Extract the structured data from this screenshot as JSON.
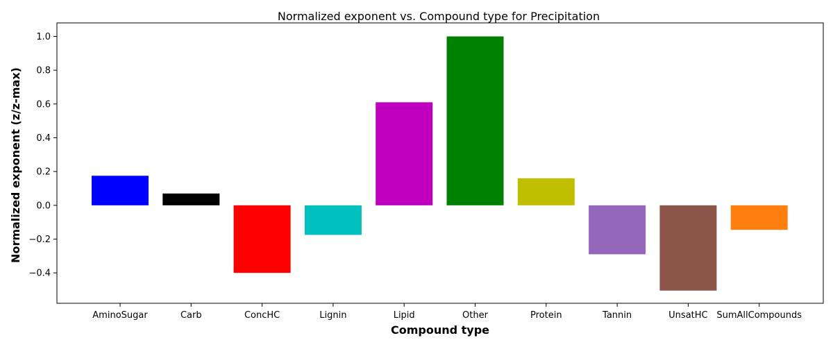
{
  "chart_data": {
    "type": "bar",
    "title": "Normalized exponent vs. Compound type for Precipitation",
    "xlabel": "Compound type",
    "ylabel": "Normalized exponent (z/z-max)",
    "categories": [
      "AminoSugar",
      "Carb",
      "ConcHC",
      "Lignin",
      "Lipid",
      "Other",
      "Protein",
      "Tannin",
      "UnsatHC",
      "SumAllCompounds"
    ],
    "values": [
      0.175,
      0.07,
      -0.4,
      -0.175,
      0.61,
      1.0,
      0.16,
      -0.29,
      -0.505,
      -0.145
    ],
    "colors": [
      "#0000ff",
      "#000000",
      "#ff0000",
      "#00bfbf",
      "#bf00bf",
      "#008000",
      "#bfbf00",
      "#9467bd",
      "#8c564b",
      "#ff7f0e"
    ],
    "ylim": [
      -0.58,
      1.08
    ],
    "yticks": [
      -0.4,
      -0.2,
      0.0,
      0.2,
      0.4,
      0.6,
      0.8,
      1.0
    ],
    "ytick_labels": [
      "−0.4",
      "−0.2",
      "0.0",
      "0.2",
      "0.4",
      "0.6",
      "0.8",
      "1.0"
    ],
    "grid": false,
    "legend": "none"
  }
}
